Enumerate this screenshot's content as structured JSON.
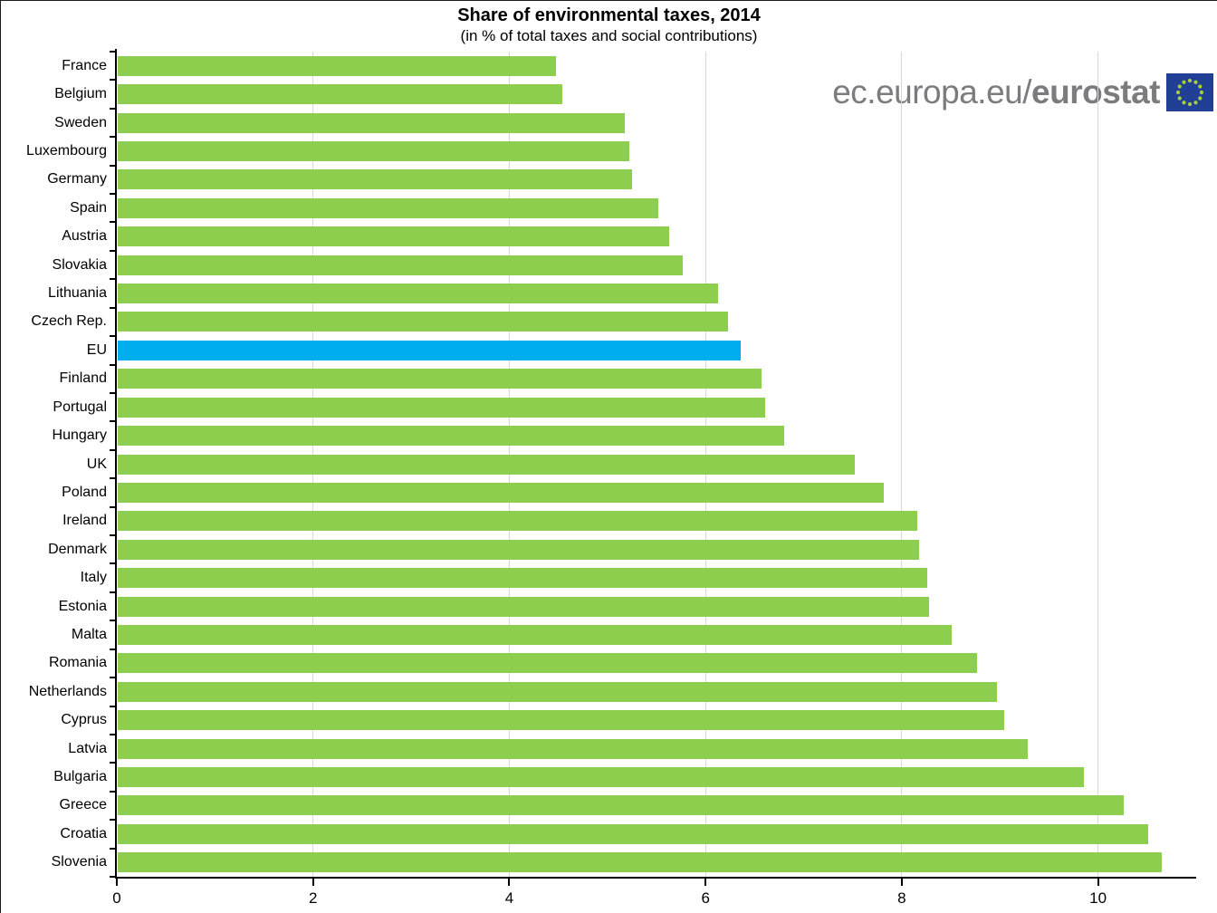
{
  "title": "Share of environmental taxes, 2014",
  "subtitle": "(in % of total taxes and social contributions)",
  "watermark": {
    "prefix": "ec.europa.eu/",
    "brand": "eurostat"
  },
  "colors": {
    "bar_green": "#8dce4e",
    "bar_highlight_blue": "#00aeef",
    "gridline": "#d7d7d7",
    "axis": "#000000",
    "watermark_gray": "#7c7c7e",
    "flag_blue": "#213f94",
    "flag_stars": "#a8cf3e"
  },
  "chart_data": {
    "type": "bar",
    "orientation": "horizontal",
    "title": "Share of environmental taxes, 2014",
    "subtitle": "(in % of total taxes and social contributions)",
    "xlabel": "",
    "ylabel": "",
    "xlim": [
      0,
      11
    ],
    "xticks": [
      0,
      2,
      4,
      6,
      8,
      10
    ],
    "grid": "vertical-only",
    "legend": "none",
    "highlight_category": "EU",
    "categories": [
      "France",
      "Belgium",
      "Sweden",
      "Luxembourg",
      "Germany",
      "Spain",
      "Austria",
      "Slovakia",
      "Lithuania",
      "Czech Rep.",
      "EU",
      "Finland",
      "Portugal",
      "Hungary",
      "UK",
      "Poland",
      "Ireland",
      "Denmark",
      "Italy",
      "Estonia",
      "Malta",
      "Romania",
      "Netherlands",
      "Cyprus",
      "Latvia",
      "Bulgaria",
      "Greece",
      "Croatia",
      "Slovenia"
    ],
    "values": [
      4.47,
      4.53,
      5.17,
      5.21,
      5.24,
      5.51,
      5.62,
      5.76,
      6.12,
      6.22,
      6.35,
      6.56,
      6.6,
      6.79,
      7.51,
      7.81,
      8.15,
      8.17,
      8.25,
      8.27,
      8.5,
      8.76,
      8.96,
      9.03,
      9.27,
      9.85,
      10.25,
      10.5,
      10.64
    ]
  }
}
